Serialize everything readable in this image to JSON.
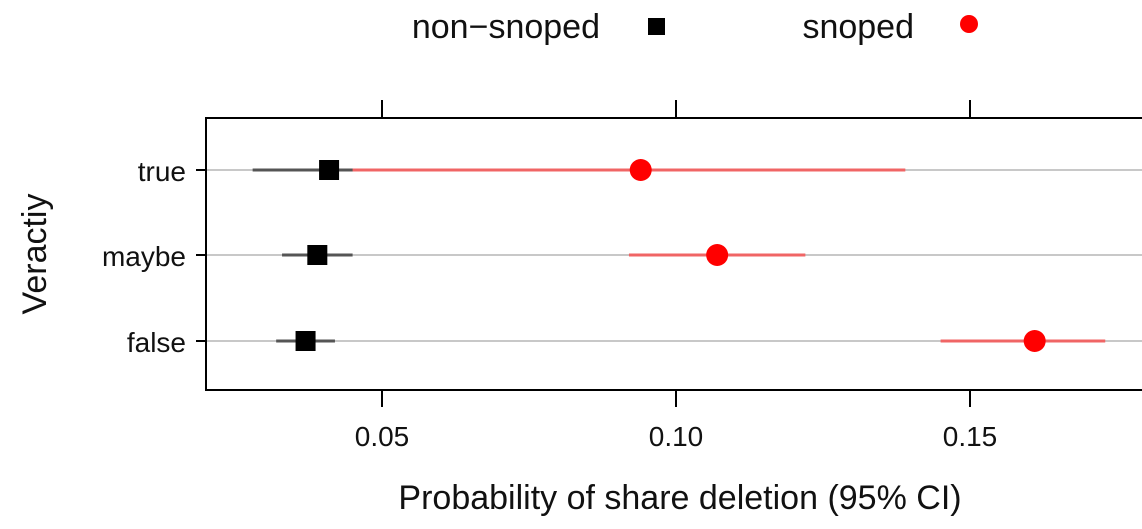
{
  "chart_data": {
    "type": "scatter",
    "subtype": "dot plot with 95% confidence intervals",
    "xlabel": "Probability of share deletion (95% CI)",
    "ylabel": "Veractiy",
    "categories": [
      "true",
      "maybe",
      "false"
    ],
    "xlim": [
      0.02,
      0.18
    ],
    "xticks": [
      0.05,
      0.1,
      0.15
    ],
    "xtick_labels": [
      "0.05",
      "0.10",
      "0.15"
    ],
    "grid": "horizontal lines at each category",
    "legend_position": "top",
    "series": [
      {
        "name": "non−snoped",
        "marker": "square",
        "color": "#000000",
        "ci_color": "#555555",
        "points": [
          {
            "category": "true",
            "estimate": 0.041,
            "lower": 0.028,
            "upper": 0.045
          },
          {
            "category": "maybe",
            "estimate": 0.039,
            "lower": 0.033,
            "upper": 0.045
          },
          {
            "category": "false",
            "estimate": 0.037,
            "lower": 0.032,
            "upper": 0.042
          }
        ]
      },
      {
        "name": "snoped",
        "marker": "circle",
        "color": "#ff0000",
        "ci_color": "#f06565",
        "points": [
          {
            "category": "true",
            "estimate": 0.094,
            "lower": 0.035,
            "upper": 0.139
          },
          {
            "category": "maybe",
            "estimate": 0.107,
            "lower": 0.092,
            "upper": 0.122
          },
          {
            "category": "false",
            "estimate": 0.161,
            "lower": 0.145,
            "upper": 0.173
          }
        ]
      }
    ]
  }
}
